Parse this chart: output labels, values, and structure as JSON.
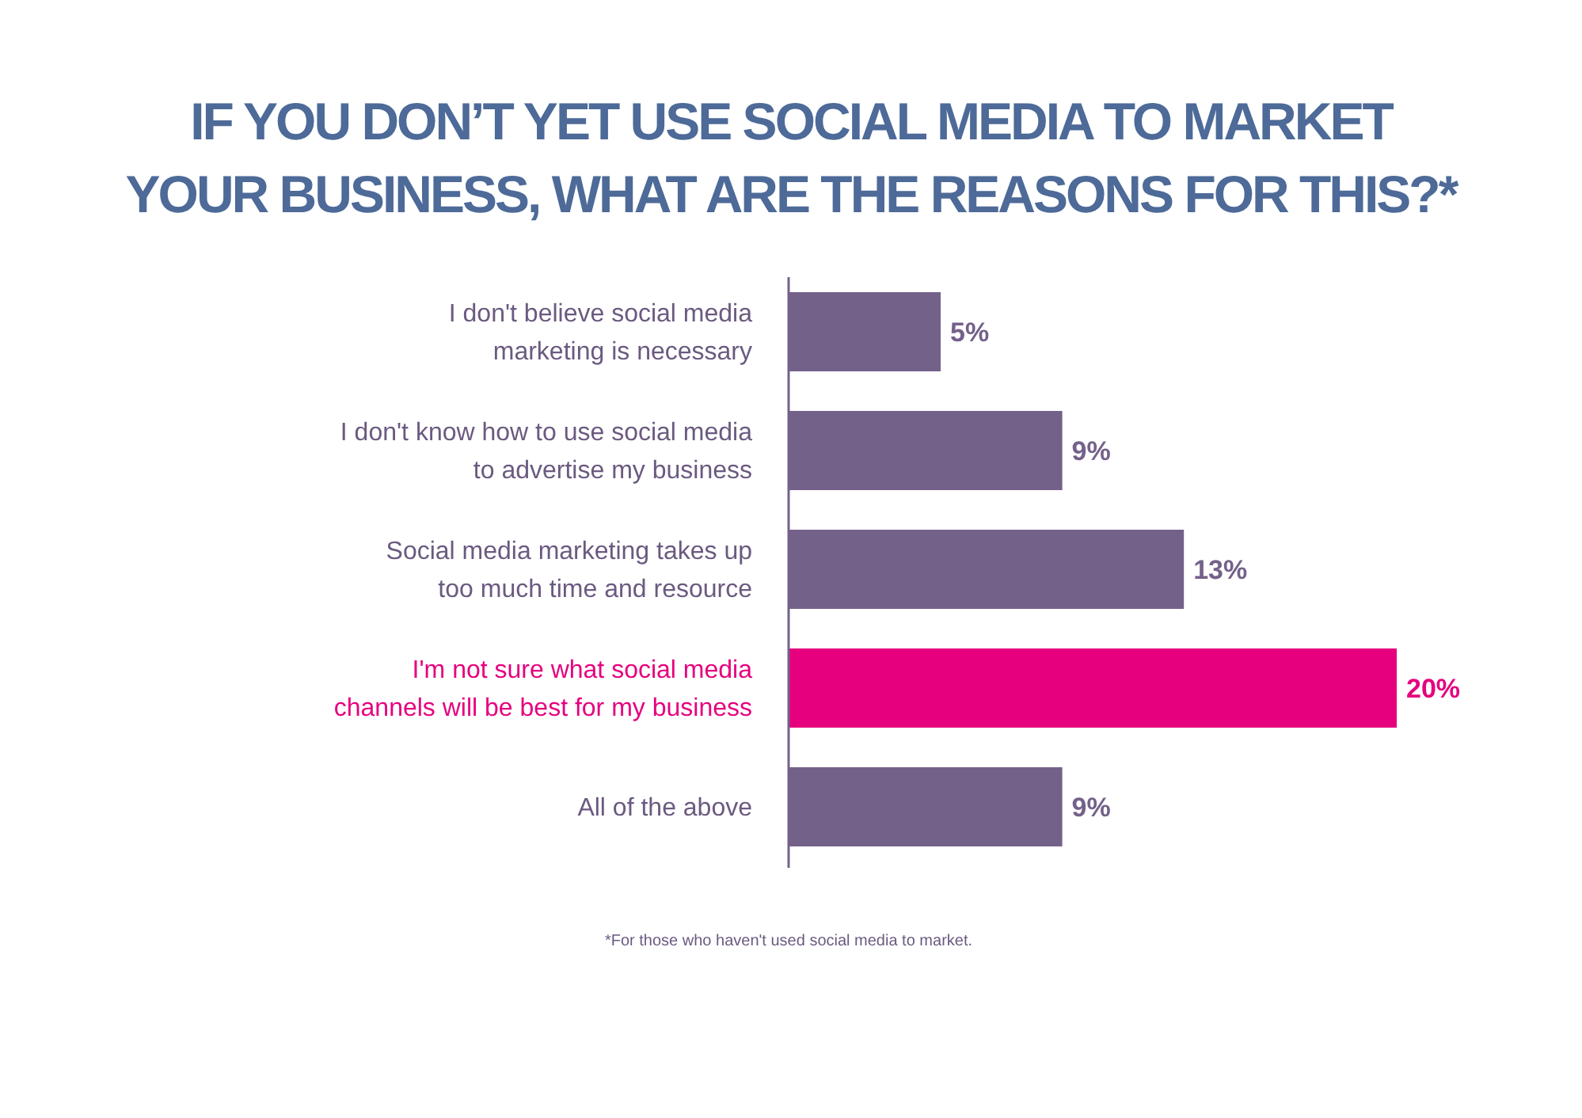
{
  "chart_data": {
    "type": "bar",
    "orientation": "horizontal",
    "title": "IF YOU DON’T YET USE SOCIAL MEDIA TO MARKET\nYOUR BUSINESS, WHAT ARE THE REASONS FOR THIS?*",
    "categories": [
      "I don't believe social media\nmarketing is necessary",
      "I don't know how to use social media\nto advertise my business",
      "Social media marketing takes up\ntoo much time and resource",
      "I'm not sure what social media\nchannels will be best for my business",
      "All of the above"
    ],
    "values": [
      5,
      9,
      13,
      20,
      9
    ],
    "value_labels": [
      "5%",
      "9%",
      "13%",
      "20%",
      "9%"
    ],
    "colors": [
      "#74618a",
      "#74618a",
      "#74618a",
      "#e6007e",
      "#74618a"
    ],
    "annotations": [
      "*For those who haven't used social media to market."
    ]
  }
}
